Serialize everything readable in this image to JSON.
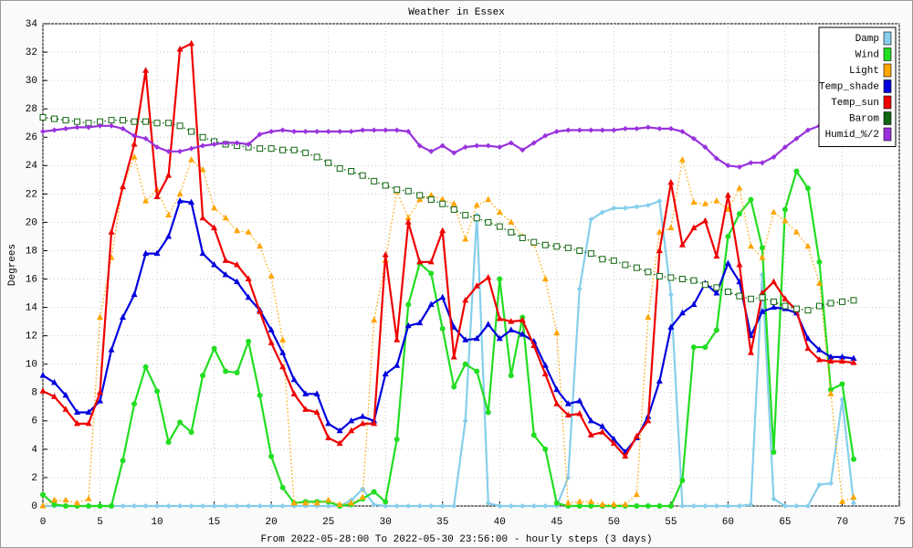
{
  "chart_data": {
    "type": "line",
    "title": "Weather in Essex",
    "x_label": "From 2022-05-28:00 To 2022-05-30 23:56:00 - hourly steps (3 days)",
    "y_label": "Degrees",
    "x": [
      0,
      1,
      2,
      3,
      4,
      5,
      6,
      7,
      8,
      9,
      10,
      11,
      12,
      13,
      14,
      15,
      16,
      17,
      18,
      19,
      20,
      21,
      22,
      23,
      24,
      25,
      26,
      27,
      28,
      29,
      30,
      31,
      32,
      33,
      34,
      35,
      36,
      37,
      38,
      39,
      40,
      41,
      42,
      43,
      44,
      45,
      46,
      47,
      48,
      49,
      50,
      51,
      52,
      53,
      54,
      55,
      56,
      57,
      58,
      59,
      60,
      61,
      62,
      63,
      64,
      65,
      66,
      67,
      68,
      69,
      70,
      71
    ],
    "xlim": [
      0,
      75
    ],
    "xticks": [
      0,
      5,
      10,
      15,
      20,
      25,
      30,
      35,
      40,
      45,
      50,
      55,
      60,
      65,
      70,
      75
    ],
    "ylim": [
      0,
      34
    ],
    "yticks": [
      0,
      2,
      4,
      6,
      8,
      10,
      12,
      14,
      16,
      18,
      20,
      22,
      24,
      26,
      28,
      30,
      32,
      34
    ],
    "grid": true,
    "legend": "top-right",
    "series": [
      {
        "name": "Damp",
        "color": "#87ceeb",
        "marker": "diamond",
        "dash": false,
        "values": [
          0,
          0,
          0,
          0,
          0,
          0,
          0,
          0,
          0,
          0,
          0,
          0,
          0,
          0,
          0,
          0,
          0,
          0,
          0,
          0,
          0,
          0,
          0,
          0,
          0,
          0,
          0,
          0.4,
          1.2,
          0.1,
          0,
          0,
          0,
          0,
          0,
          0,
          0,
          6,
          20.5,
          0.2,
          0,
          0,
          0,
          0,
          0,
          0,
          2,
          15.3,
          20.2,
          20.7,
          21,
          21,
          21.1,
          21.2,
          21.5,
          14.9,
          0,
          0,
          0,
          0,
          0,
          0,
          0.1,
          16.3,
          0.5,
          0,
          0,
          0,
          1.5,
          1.6,
          7.5,
          0.2
        ]
      },
      {
        "name": "Wind",
        "color": "#22dd22",
        "marker": "circle",
        "dash": false,
        "values": [
          0.8,
          0.1,
          0,
          0,
          0,
          0,
          0,
          3.2,
          7.2,
          9.8,
          8.1,
          4.5,
          5.9,
          5.2,
          9.2,
          11.1,
          9.5,
          9.4,
          11.6,
          7.8,
          3.5,
          1.3,
          0.2,
          0.3,
          0.3,
          0.3,
          0,
          0.1,
          0.5,
          1,
          0.3,
          4.7,
          14.2,
          17.1,
          16.4,
          12.5,
          8.4,
          10,
          9.5,
          6.6,
          16,
          9.2,
          13.3,
          5,
          4,
          0.2,
          0,
          0,
          0,
          0,
          0,
          0,
          0,
          0,
          0,
          0,
          1.8,
          11.2,
          11.2,
          12.4,
          19,
          20.6,
          21.6,
          18.2,
          3.8,
          20.9,
          23.6,
          22.4,
          17.2,
          8.2,
          8.6,
          3.3
        ]
      },
      {
        "name": "Light",
        "color": "#ffa500",
        "marker": "triangle",
        "dash": true,
        "values": [
          0,
          0.4,
          0.4,
          0.2,
          0.5,
          13.3,
          17.5,
          22.5,
          24.6,
          21.5,
          22.3,
          20.5,
          22,
          24.4,
          23.7,
          21,
          20.3,
          19.4,
          19.3,
          18.3,
          16.2,
          11.7,
          0.2,
          0.2,
          0.2,
          0.4,
          0.1,
          0.2,
          0.6,
          13.1,
          17.3,
          22.2,
          20.3,
          21.6,
          21.9,
          21.6,
          21.3,
          18.8,
          21.2,
          21.6,
          20.7,
          20,
          19,
          18.5,
          16,
          12.2,
          0.2,
          0.3,
          0.3,
          0.1,
          0.1,
          0.1,
          0.8,
          13.3,
          19.3,
          19.6,
          24.4,
          21.4,
          21.3,
          21.5,
          20.9,
          22.4,
          18.3,
          17.5,
          20.7,
          20.1,
          19.3,
          18.3,
          15.7,
          7.9,
          0.3,
          0.6
        ]
      },
      {
        "name": "Temp_shade",
        "color": "#0000dd",
        "marker": "triangle",
        "dash": false,
        "values": [
          9.2,
          8.7,
          7.8,
          6.6,
          6.6,
          7.4,
          11,
          13.3,
          14.9,
          17.8,
          17.8,
          19,
          21.5,
          21.4,
          17.8,
          17,
          16.3,
          15.8,
          14.7,
          13.8,
          12.4,
          10.8,
          8.9,
          7.9,
          7.9,
          5.8,
          5.3,
          6,
          6.3,
          6,
          9.3,
          9.9,
          12.7,
          12.9,
          14.2,
          14.7,
          12.6,
          11.7,
          11.8,
          12.8,
          11.8,
          12.4,
          12.1,
          11.6,
          9.9,
          8.2,
          7.2,
          7.4,
          6,
          5.6,
          4.7,
          3.8,
          4.8,
          6.3,
          8.8,
          12.6,
          13.6,
          14.2,
          15.7,
          15,
          17.1,
          15.8,
          12,
          13.7,
          14,
          13.9,
          13.6,
          11.8,
          11,
          10.5,
          10.5,
          10.4
        ]
      },
      {
        "name": "Temp_sun",
        "color": "#ee0000",
        "marker": "triangle",
        "dash": false,
        "values": [
          8.1,
          7.7,
          6.8,
          5.8,
          5.8,
          8,
          19.3,
          22.5,
          25.5,
          30.7,
          21.8,
          23.3,
          32.2,
          32.6,
          20.3,
          19.6,
          17.3,
          17,
          16,
          13.7,
          11.5,
          9.8,
          7.9,
          6.8,
          6.6,
          4.8,
          4.4,
          5.3,
          5.8,
          5.8,
          17.7,
          11.7,
          20,
          17.2,
          17.2,
          19.4,
          10.5,
          14.5,
          15.5,
          16.1,
          13.2,
          13,
          13.1,
          11.3,
          9.3,
          7.2,
          6.4,
          6.5,
          5,
          5.2,
          4.4,
          3.5,
          4.9,
          6,
          18,
          22.8,
          18.4,
          19.6,
          20.1,
          17.6,
          21.9,
          17,
          10.8,
          15,
          15.8,
          14.6,
          13.8,
          11.1,
          10.3,
          10.2,
          10.2,
          10.1
        ]
      },
      {
        "name": "Barom",
        "color": "#116611",
        "marker": "square",
        "dash": true,
        "values": [
          27.4,
          27.3,
          27.2,
          27.1,
          27,
          27.1,
          27.2,
          27.2,
          27.1,
          27.1,
          27,
          27,
          26.8,
          26.4,
          26,
          25.7,
          25.5,
          25.4,
          25.3,
          25.2,
          25.2,
          25.1,
          25.1,
          24.9,
          24.6,
          24.2,
          23.8,
          23.6,
          23.3,
          22.9,
          22.6,
          22.3,
          22.2,
          21.9,
          21.6,
          21.3,
          20.9,
          20.5,
          20.3,
          20,
          19.7,
          19.3,
          18.9,
          18.6,
          18.4,
          18.3,
          18.2,
          18,
          17.8,
          17.4,
          17.3,
          17,
          16.8,
          16.5,
          16.2,
          16.1,
          16,
          15.9,
          15.6,
          15.4,
          15.1,
          14.8,
          14.6,
          14.7,
          14.4,
          14.1,
          13.9,
          13.8,
          14.1,
          14.3,
          14.4,
          14.5
        ]
      },
      {
        "name": "Humid_%/2",
        "color": "#9932dd",
        "marker": "diamond",
        "dash": false,
        "values": [
          26.4,
          26.5,
          26.6,
          26.7,
          26.7,
          26.8,
          26.8,
          26.6,
          26.1,
          25.9,
          25.3,
          25,
          25,
          25.2,
          25.4,
          25.5,
          25.6,
          25.6,
          25.5,
          26.2,
          26.4,
          26.5,
          26.4,
          26.4,
          26.4,
          26.4,
          26.4,
          26.4,
          26.5,
          26.5,
          26.5,
          26.5,
          26.4,
          25.4,
          25,
          25.4,
          24.9,
          25.3,
          25.4,
          25.4,
          25.3,
          25.6,
          25.1,
          25.6,
          26.1,
          26.4,
          26.5,
          26.5,
          26.5,
          26.5,
          26.5,
          26.6,
          26.6,
          26.7,
          26.6,
          26.6,
          26.4,
          25.9,
          25.3,
          24.5,
          24,
          23.9,
          24.2,
          24.2,
          24.6,
          25.3,
          25.9,
          26.5,
          26.8,
          26.8,
          26.8,
          26.8
        ]
      }
    ]
  }
}
